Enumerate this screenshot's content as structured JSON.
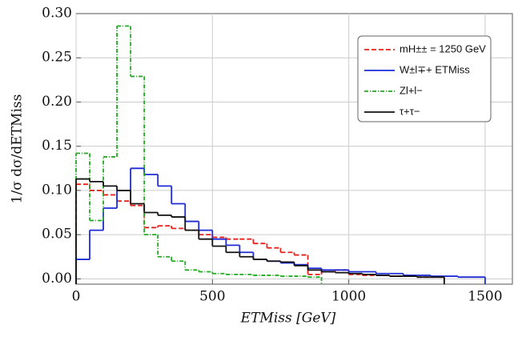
{
  "chart_data": {
    "type": "histogram",
    "x_label": "ETMiss [GeV]",
    "y_label": "1/σ dσ/dETMiss",
    "xlim": [
      0,
      1600
    ],
    "xticks": [
      0,
      500,
      1000,
      1500
    ],
    "ylim": [
      -0.006,
      0.3
    ],
    "yticks": [
      {
        "value": 0,
        "label": "0.00"
      },
      {
        "value": 0.05,
        "label": "0.05"
      },
      {
        "value": 0.1,
        "label": "0.10"
      },
      {
        "value": 0.15,
        "label": "0.15"
      },
      {
        "value": 0.2,
        "label": "0.20"
      },
      {
        "value": 0.25,
        "label": "0.25"
      },
      {
        "value": 0.3,
        "label": "0.30"
      }
    ],
    "grid": true,
    "legend": "upper right",
    "series": [
      {
        "name": "mH±± = 1250 GeV",
        "color": "#e8211c",
        "dash": "6,3",
        "bins": [
          0,
          50,
          100,
          150,
          200,
          250,
          300,
          350,
          400,
          450,
          500,
          550,
          600,
          650,
          700,
          750,
          800,
          850,
          900,
          950,
          1000,
          1050,
          1100,
          1150,
          1200,
          1250,
          1300,
          1350
        ],
        "values": [
          0.107,
          0.1,
          0.095,
          0.088,
          0.083,
          0.058,
          0.06,
          0.057,
          0.055,
          0.05,
          0.047,
          0.045,
          0.045,
          0.04,
          0.035,
          0.03,
          0.027,
          0.005,
          0.008,
          0.01,
          0.005,
          0.004,
          0.004,
          0.003,
          0.003,
          0.002,
          0.002
        ]
      },
      {
        "name": "W±l∓+ ETMiss",
        "color": "#1c2bd6",
        "dash": "",
        "bins": [
          0,
          50,
          100,
          150,
          200,
          250,
          300,
          350,
          400,
          450,
          500,
          550,
          600,
          650,
          700,
          750,
          800,
          850,
          900,
          950,
          1000,
          1050,
          1100,
          1150,
          1200,
          1250,
          1300,
          1350,
          1400,
          1450,
          1500
        ],
        "values": [
          0.022,
          0.055,
          0.08,
          0.1,
          0.125,
          0.118,
          0.105,
          0.085,
          0.065,
          0.055,
          0.045,
          0.038,
          0.03,
          0.022,
          0.02,
          0.018,
          0.016,
          0.012,
          0.01,
          0.01,
          0.008,
          0.008,
          0.006,
          0.006,
          0.004,
          0.004,
          0.003,
          0.003,
          0.002,
          0.002
        ]
      },
      {
        "name": "Zl+l−",
        "color": "#22aa22",
        "dash": "5,2,1,2",
        "bins": [
          0,
          50,
          100,
          150,
          200,
          250,
          300,
          350,
          400,
          450,
          500,
          550,
          600,
          650,
          700,
          750,
          800,
          850,
          900
        ],
        "values": [
          0.142,
          0.066,
          0.138,
          0.286,
          0.229,
          0.05,
          0.025,
          0.02,
          0.01,
          0.008,
          0.006,
          0.005,
          0.005,
          0.004,
          0.004,
          0.003,
          0.003,
          0.002
        ]
      },
      {
        "name": "τ+τ−",
        "color": "#111111",
        "dash": "",
        "bins": [
          0,
          50,
          100,
          150,
          200,
          250,
          300,
          350,
          400,
          450,
          500,
          550,
          600,
          650,
          700,
          750,
          800,
          850,
          900,
          950,
          1000,
          1050,
          1100,
          1150,
          1200,
          1250,
          1300,
          1350
        ],
        "values": [
          0.113,
          0.11,
          0.105,
          0.1,
          0.085,
          0.075,
          0.072,
          0.07,
          0.055,
          0.045,
          0.037,
          0.03,
          0.025,
          0.022,
          0.02,
          0.019,
          0.015,
          0.01,
          0.008,
          0.007,
          0.006,
          0.005,
          0.004,
          0.003,
          0.003,
          0.002,
          0.002
        ]
      }
    ]
  }
}
